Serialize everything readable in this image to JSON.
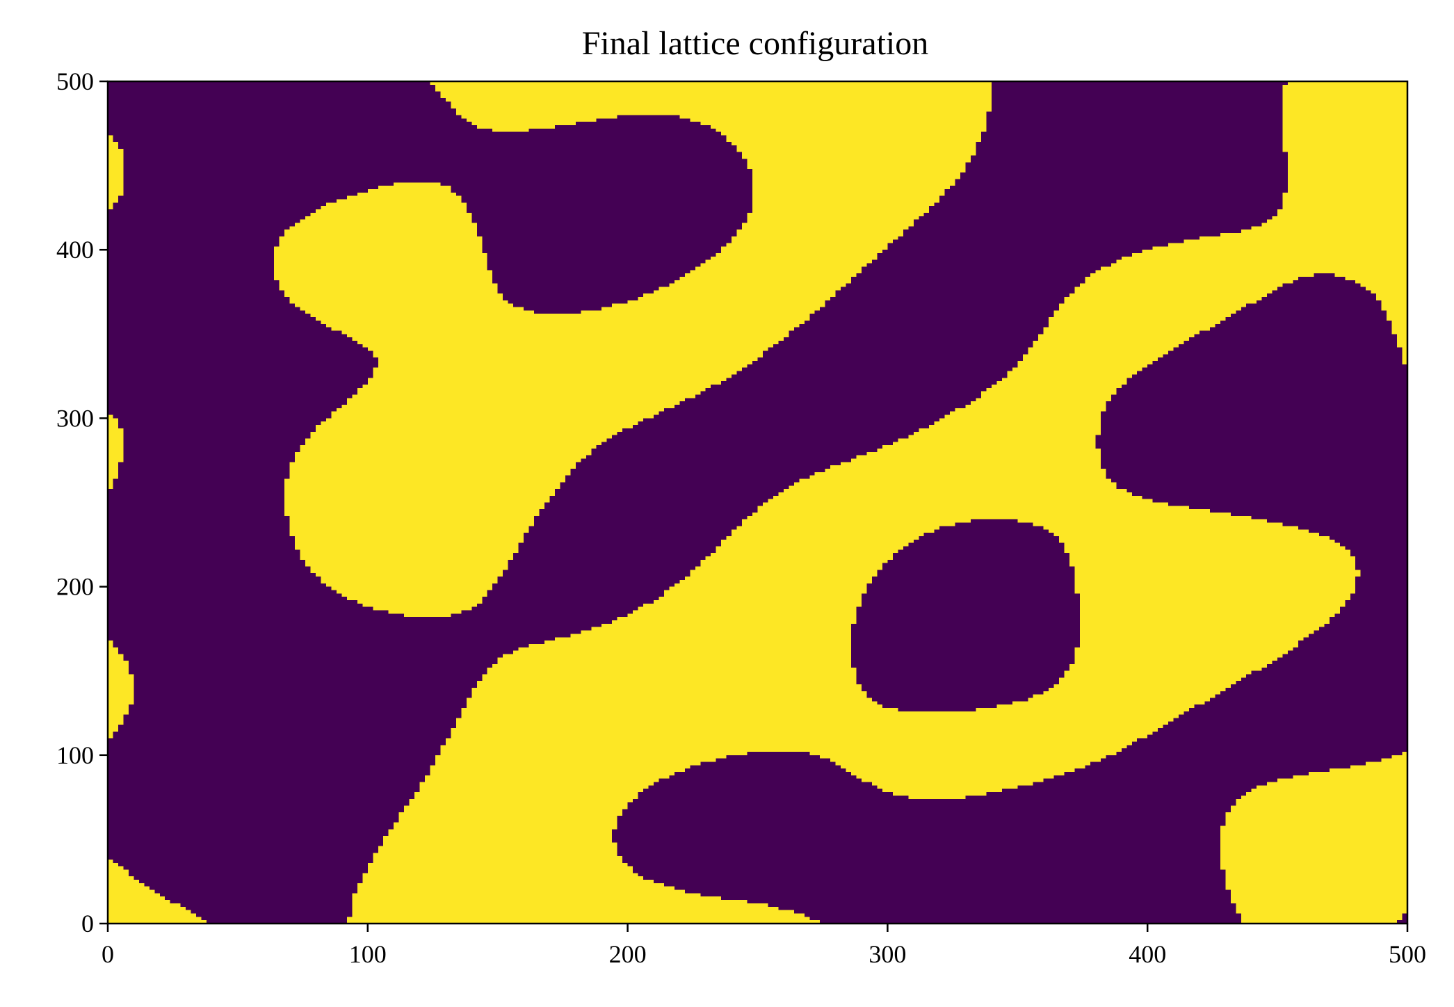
{
  "chart_data": {
    "type": "heatmap",
    "title": "Final lattice configuration",
    "xlabel": "",
    "ylabel": "",
    "xlim": [
      0,
      500
    ],
    "ylim": [
      0,
      500
    ],
    "x_ticks": [
      0,
      100,
      200,
      300,
      400,
      500
    ],
    "y_ticks": [
      0,
      100,
      200,
      300,
      400,
      500
    ],
    "lattice_size": [
      500,
      500
    ],
    "states": [
      -1,
      1
    ],
    "colormap": "viridis",
    "colors": {
      "state_down": "#440154",
      "state_up": "#fde725"
    },
    "grid": false,
    "legend": "none"
  }
}
